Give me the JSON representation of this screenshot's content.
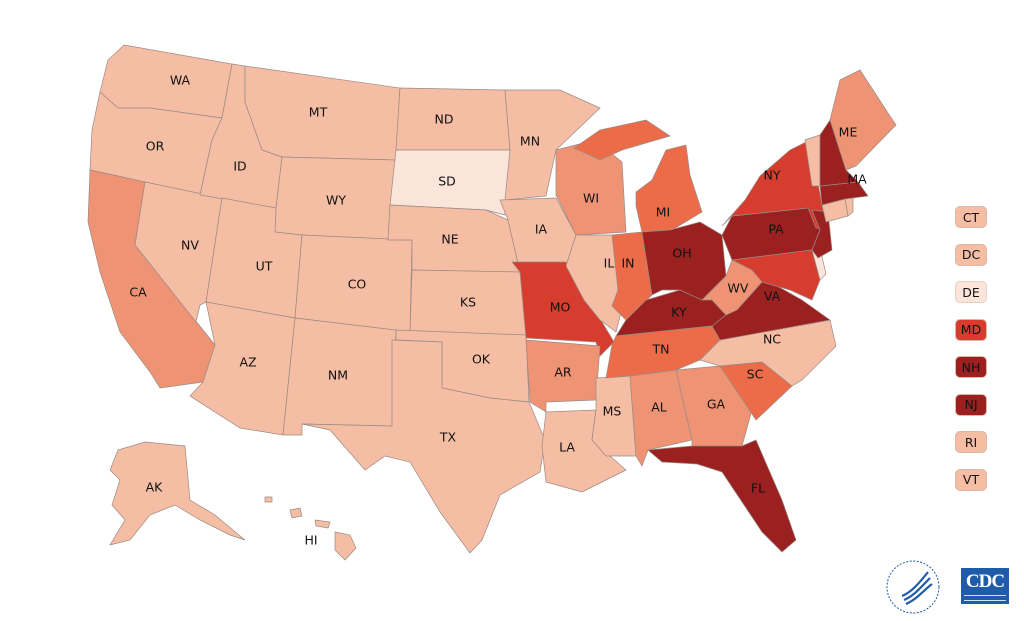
{
  "colors": {
    "lightest": "#fbe4d9",
    "light": "#f4bda4",
    "medium": "#ee9475",
    "orange": "#ec6c4a",
    "red": "#d63d2e",
    "dark": "#9b2020"
  },
  "states": [
    {
      "id": "WA",
      "label": "WA",
      "level": "light"
    },
    {
      "id": "OR",
      "label": "OR",
      "level": "light"
    },
    {
      "id": "CA",
      "label": "CA",
      "level": "medium"
    },
    {
      "id": "NV",
      "label": "NV",
      "level": "light"
    },
    {
      "id": "ID",
      "label": "ID",
      "level": "light"
    },
    {
      "id": "MT",
      "label": "MT",
      "level": "light"
    },
    {
      "id": "WY",
      "label": "WY",
      "level": "light"
    },
    {
      "id": "UT",
      "label": "UT",
      "level": "light"
    },
    {
      "id": "CO",
      "label": "CO",
      "level": "light"
    },
    {
      "id": "AZ",
      "label": "AZ",
      "level": "light"
    },
    {
      "id": "NM",
      "label": "NM",
      "level": "light"
    },
    {
      "id": "ND",
      "label": "ND",
      "level": "light"
    },
    {
      "id": "SD",
      "label": "SD",
      "level": "lightest"
    },
    {
      "id": "NE",
      "label": "NE",
      "level": "light"
    },
    {
      "id": "KS",
      "label": "KS",
      "level": "light"
    },
    {
      "id": "OK",
      "label": "OK",
      "level": "light"
    },
    {
      "id": "TX",
      "label": "TX",
      "level": "light"
    },
    {
      "id": "MN",
      "label": "MN",
      "level": "light"
    },
    {
      "id": "IA",
      "label": "IA",
      "level": "light"
    },
    {
      "id": "MO",
      "label": "MO",
      "level": "red"
    },
    {
      "id": "AR",
      "label": "AR",
      "level": "medium"
    },
    {
      "id": "LA",
      "label": "LA",
      "level": "light"
    },
    {
      "id": "WI",
      "label": "WI",
      "level": "medium"
    },
    {
      "id": "IL",
      "label": "IL",
      "level": "light"
    },
    {
      "id": "MS",
      "label": "MS",
      "level": "light"
    },
    {
      "id": "MI",
      "label": "MI",
      "level": "orange"
    },
    {
      "id": "IN",
      "label": "IN",
      "level": "orange"
    },
    {
      "id": "KY",
      "label": "KY",
      "level": "dark"
    },
    {
      "id": "TN",
      "label": "TN",
      "level": "orange"
    },
    {
      "id": "AL",
      "label": "AL",
      "level": "medium"
    },
    {
      "id": "OH",
      "label": "OH",
      "level": "dark"
    },
    {
      "id": "GA",
      "label": "GA",
      "level": "medium"
    },
    {
      "id": "FL",
      "label": "FL",
      "level": "dark"
    },
    {
      "id": "SC",
      "label": "SC",
      "level": "orange"
    },
    {
      "id": "NC",
      "label": "NC",
      "level": "light"
    },
    {
      "id": "WV",
      "label": "WV",
      "level": "medium"
    },
    {
      "id": "VA",
      "label": "VA",
      "level": "dark"
    },
    {
      "id": "PA",
      "label": "PA",
      "level": "dark"
    },
    {
      "id": "NY",
      "label": "NY",
      "level": "red"
    },
    {
      "id": "MD",
      "label": "",
      "level": "red"
    },
    {
      "id": "DE",
      "label": "",
      "level": "lightest"
    },
    {
      "id": "NJ",
      "label": "",
      "level": "dark"
    },
    {
      "id": "CT",
      "label": "",
      "level": "light"
    },
    {
      "id": "RI",
      "label": "",
      "level": "light"
    },
    {
      "id": "MA",
      "label": "MA",
      "level": "dark"
    },
    {
      "id": "VT",
      "label": "",
      "level": "light"
    },
    {
      "id": "NH",
      "label": "",
      "level": "dark"
    },
    {
      "id": "ME",
      "label": "ME",
      "level": "medium"
    },
    {
      "id": "AK",
      "label": "AK",
      "level": "light"
    },
    {
      "id": "HI",
      "label": "HI",
      "level": "light"
    }
  ],
  "legend": [
    {
      "label": "CT",
      "level": "light"
    },
    {
      "label": "DC",
      "level": "light"
    },
    {
      "label": "DE",
      "level": "lightest"
    },
    {
      "label": "MD",
      "level": "red"
    },
    {
      "label": "NH",
      "level": "dark"
    },
    {
      "label": "NJ",
      "level": "dark"
    },
    {
      "label": "RI",
      "label2": "",
      "level": "light"
    },
    {
      "label": "VT",
      "level": "light"
    }
  ],
  "logos": {
    "hhs": "DEPARTMENT OF HEALTH & HUMAN SERVICES USA",
    "cdc": "CDC"
  }
}
